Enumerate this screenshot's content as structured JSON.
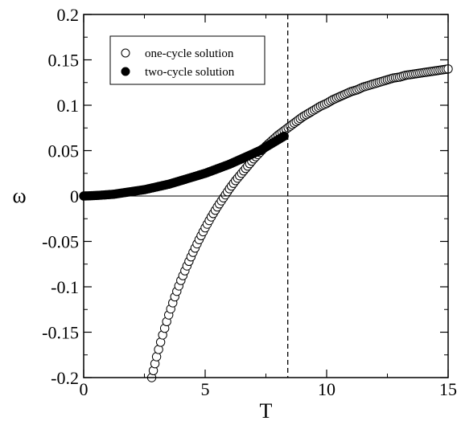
{
  "chart_data": {
    "type": "scatter",
    "xlabel": "T",
    "ylabel": "ω",
    "xlim": [
      0,
      15
    ],
    "ylim": [
      -0.2,
      0.2
    ],
    "x_ticks": [
      0,
      5,
      10,
      15
    ],
    "y_ticks": [
      -0.2,
      -0.15,
      -0.1,
      -0.05,
      0,
      0.05,
      0.1,
      0.15,
      0.2
    ],
    "x_tick_labels": [
      "0",
      "5",
      "10",
      "15"
    ],
    "y_tick_labels": [
      "-0.2",
      "-0.15",
      "-0.1",
      "-0.05",
      "0",
      "0.05",
      "0.1",
      "0.15",
      "0.2"
    ],
    "grid": false,
    "legend_position": "top-left",
    "reference_lines": [
      {
        "type": "horizontal",
        "value": 0,
        "style": "solid"
      },
      {
        "type": "vertical",
        "value": 8.4,
        "style": "dashed"
      }
    ],
    "series": [
      {
        "name": "one-cycle solution",
        "marker": "open-circle",
        "x": [
          2.8,
          3.0,
          3.25,
          3.5,
          3.75,
          4.0,
          4.25,
          4.5,
          4.75,
          5.0,
          5.25,
          5.5,
          5.75,
          6.0,
          6.25,
          6.5,
          6.75,
          7.0,
          7.25,
          7.5,
          7.75,
          8.0,
          8.25,
          8.5,
          8.75,
          9.0,
          9.25,
          9.5,
          9.75,
          10.0,
          10.25,
          10.5,
          10.75,
          11.0,
          11.25,
          11.5,
          11.75,
          12.0,
          12.25,
          12.5,
          12.75,
          13.0,
          13.25,
          13.5,
          13.75,
          14.0,
          14.25,
          14.5,
          14.75,
          15.0
        ],
        "y": [
          -0.2,
          -0.177,
          -0.153,
          -0.131,
          -0.111,
          -0.093,
          -0.077,
          -0.062,
          -0.048,
          -0.035,
          -0.023,
          -0.012,
          -0.002,
          0.008,
          0.017,
          0.025,
          0.033,
          0.041,
          0.048,
          0.055,
          0.061,
          0.067,
          0.072,
          0.077,
          0.082,
          0.087,
          0.091,
          0.095,
          0.099,
          0.102,
          0.106,
          0.109,
          0.112,
          0.115,
          0.117,
          0.12,
          0.122,
          0.124,
          0.126,
          0.128,
          0.13,
          0.131,
          0.133,
          0.134,
          0.135,
          0.136,
          0.137,
          0.138,
          0.139,
          0.14
        ]
      },
      {
        "name": "two-cycle solution",
        "marker": "filled-circle",
        "x": [
          0.0,
          0.25,
          0.5,
          0.75,
          1.0,
          1.25,
          1.5,
          1.75,
          2.0,
          2.25,
          2.5,
          2.75,
          3.0,
          3.25,
          3.5,
          3.75,
          4.0,
          4.25,
          4.5,
          4.75,
          5.0,
          5.25,
          5.5,
          5.75,
          6.0,
          6.25,
          6.5,
          6.75,
          7.0,
          7.25,
          7.5,
          7.75,
          8.0,
          8.25
        ],
        "y": [
          0.0,
          0.0003,
          0.0006,
          0.001,
          0.0015,
          0.002,
          0.003,
          0.004,
          0.005,
          0.006,
          0.007,
          0.0085,
          0.01,
          0.0115,
          0.013,
          0.015,
          0.017,
          0.019,
          0.021,
          0.023,
          0.025,
          0.0275,
          0.03,
          0.0325,
          0.035,
          0.038,
          0.041,
          0.044,
          0.047,
          0.05,
          0.054,
          0.058,
          0.062,
          0.066
        ]
      }
    ]
  }
}
